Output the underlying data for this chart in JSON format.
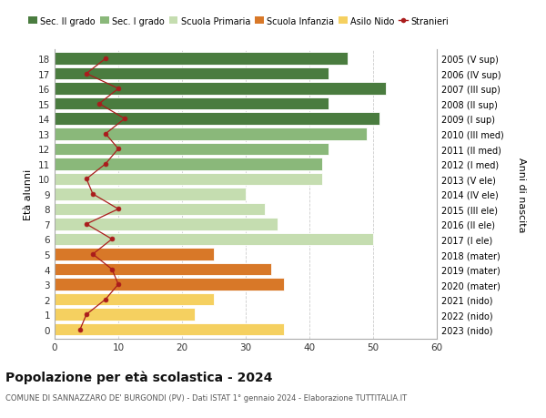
{
  "ages": [
    18,
    17,
    16,
    15,
    14,
    13,
    12,
    11,
    10,
    9,
    8,
    7,
    6,
    5,
    4,
    3,
    2,
    1,
    0
  ],
  "anni_nascita": [
    "2005 (V sup)",
    "2006 (IV sup)",
    "2007 (III sup)",
    "2008 (II sup)",
    "2009 (I sup)",
    "2010 (III med)",
    "2011 (II med)",
    "2012 (I med)",
    "2013 (V ele)",
    "2014 (IV ele)",
    "2015 (III ele)",
    "2016 (II ele)",
    "2017 (I ele)",
    "2018 (mater)",
    "2019 (mater)",
    "2020 (mater)",
    "2021 (nido)",
    "2022 (nido)",
    "2023 (nido)"
  ],
  "bar_values": [
    46,
    43,
    52,
    43,
    51,
    49,
    43,
    42,
    42,
    30,
    33,
    35,
    50,
    25,
    34,
    36,
    25,
    22,
    36
  ],
  "bar_colors": [
    "#4a7c3f",
    "#4a7c3f",
    "#4a7c3f",
    "#4a7c3f",
    "#4a7c3f",
    "#8ab87a",
    "#8ab87a",
    "#8ab87a",
    "#c5ddb0",
    "#c5ddb0",
    "#c5ddb0",
    "#c5ddb0",
    "#c5ddb0",
    "#d87828",
    "#d87828",
    "#d87828",
    "#f5d060",
    "#f5d060",
    "#f5d060"
  ],
  "stranieri_values": [
    8,
    5,
    10,
    7,
    11,
    8,
    10,
    8,
    5,
    6,
    10,
    5,
    9,
    6,
    9,
    10,
    8,
    5,
    4
  ],
  "stranieri_color": "#aa1c1c",
  "legend_labels": [
    "Sec. II grado",
    "Sec. I grado",
    "Scuola Primaria",
    "Scuola Infanzia",
    "Asilo Nido",
    "Stranieri"
  ],
  "legend_colors": [
    "#4a7c3f",
    "#8ab87a",
    "#c5ddb0",
    "#d87828",
    "#f5d060",
    "#aa1c1c"
  ],
  "ylabel": "Età alunni",
  "ylabel_right": "Anni di nascita",
  "title": "Popolazione per età scolastica - 2024",
  "subtitle": "COMUNE DI SANNAZZARO DE' BURGONDI (PV) - Dati ISTAT 1° gennaio 2024 - Elaborazione TUTTITALIA.IT",
  "xlim": [
    0,
    60
  ],
  "xticks": [
    0,
    10,
    20,
    30,
    40,
    50,
    60
  ],
  "background_color": "#ffffff",
  "grid_color": "#cccccc"
}
